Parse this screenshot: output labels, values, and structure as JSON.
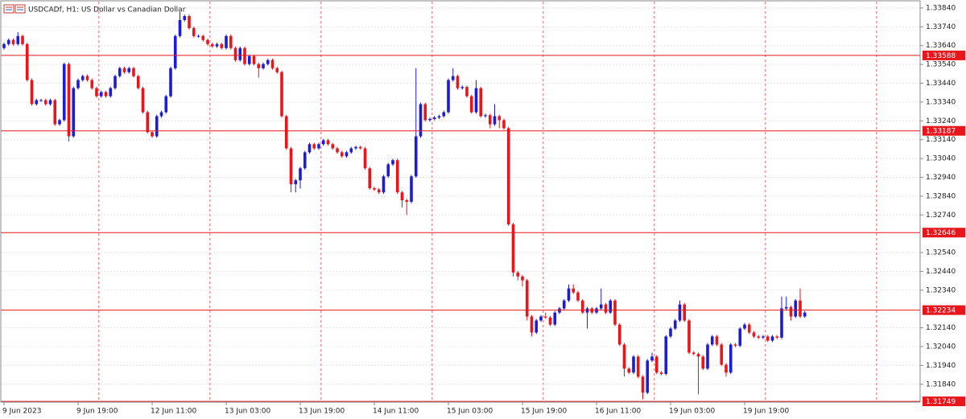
{
  "chart_data": {
    "type": "candlestick",
    "title": "USDCADf, H1:  US Dollar vs Canadian Dollar",
    "up_color": "#1c1cd6",
    "down_color": "#e8151b",
    "level_color": "#e8151b",
    "grid": true,
    "ylim": [
      1.31745,
      1.33874
    ],
    "yticks": [
      {
        "value": 1.3384,
        "label": "1.33840"
      },
      {
        "value": 1.3374,
        "label": "1.33740"
      },
      {
        "value": 1.3364,
        "label": "1.33640"
      },
      {
        "value": 1.3354,
        "label": "1.33540"
      },
      {
        "value": 1.3344,
        "label": "1.33440"
      },
      {
        "value": 1.3334,
        "label": "1.33340"
      },
      {
        "value": 1.3324,
        "label": "1.33240"
      },
      {
        "value": 1.3314,
        "label": "1.33140"
      },
      {
        "value": 1.3304,
        "label": "1.33040"
      },
      {
        "value": 1.3294,
        "label": "1.32940"
      },
      {
        "value": 1.3284,
        "label": "1.32840"
      },
      {
        "value": 1.3274,
        "label": "1.32740"
      },
      {
        "value": 1.3254,
        "label": "1.32540"
      },
      {
        "value": 1.3244,
        "label": "1.32440"
      },
      {
        "value": 1.3234,
        "label": "1.32340"
      },
      {
        "value": 1.3214,
        "label": "1.32140"
      },
      {
        "value": 1.3204,
        "label": "1.32040"
      },
      {
        "value": 1.3194,
        "label": "1.31940"
      },
      {
        "value": 1.3184,
        "label": "1.31840"
      }
    ],
    "levels": [
      1.33588,
      1.33187,
      1.32646,
      1.32234,
      1.31749
    ],
    "categories": [
      "9 Jun 2023",
      null,
      null,
      null,
      null,
      null,
      null,
      null,
      null,
      null,
      null,
      null,
      null,
      null,
      null,
      null,
      "9 Jun 19:00",
      null,
      null,
      null,
      null,
      null,
      null,
      null,
      null,
      null,
      null,
      null,
      null,
      null,
      null,
      null,
      "12 Jun 11:00",
      null,
      null,
      null,
      null,
      null,
      null,
      null,
      null,
      null,
      null,
      null,
      null,
      null,
      null,
      null,
      "13 Jun 03:00",
      null,
      null,
      null,
      null,
      null,
      null,
      null,
      null,
      null,
      null,
      null,
      null,
      null,
      null,
      null,
      "13 Jun 19:00",
      null,
      null,
      null,
      null,
      null,
      null,
      null,
      null,
      null,
      null,
      null,
      null,
      null,
      null,
      null,
      "14 Jun 11:00",
      null,
      null,
      null,
      null,
      null,
      null,
      null,
      null,
      null,
      null,
      null,
      null,
      null,
      null,
      null,
      "15 Jun 03:00",
      null,
      null,
      null,
      null,
      null,
      null,
      null,
      null,
      null,
      null,
      null,
      null,
      null,
      null,
      null,
      "15 Jun 19:00",
      null,
      null,
      null,
      null,
      null,
      null,
      null,
      null,
      null,
      null,
      null,
      null,
      null,
      null,
      null,
      "16 Jun 11:00",
      null,
      null,
      null,
      null,
      null,
      null,
      null,
      null,
      null,
      null,
      null,
      null,
      null,
      null,
      null,
      "19 Jun 03:00",
      null,
      null,
      null,
      null,
      null,
      null,
      null,
      null,
      null,
      null,
      null,
      null,
      null,
      null,
      null,
      "19 Jun 19:00",
      null,
      null,
      null,
      null,
      null,
      null,
      null,
      null,
      null,
      null,
      null,
      null,
      null
    ],
    "open": [
      1.33627,
      1.33648,
      1.3367,
      1.33648,
      1.33691,
      1.33648,
      1.33457,
      1.33329,
      1.3335,
      1.3335,
      1.33329,
      1.3335,
      1.33222,
      1.33244,
      1.33542,
      1.33158,
      1.33414,
      1.33457,
      1.33478,
      1.33457,
      1.33414,
      1.33371,
      1.33393,
      1.33371,
      1.33414,
      1.33478,
      1.3352,
      1.33499,
      1.3352,
      1.33478,
      1.33414,
      1.33286,
      1.3318,
      1.33158,
      1.33265,
      1.33286,
      1.33371,
      1.3352,
      1.33691,
      1.33776,
      1.33797,
      1.33733,
      1.33691,
      1.33691,
      1.3367,
      1.33648,
      1.33636,
      1.33648,
      1.33627,
      1.33691,
      1.33627,
      1.33563,
      1.33627,
      1.33542,
      1.33584,
      1.33542,
      1.3352,
      1.33542,
      1.33563,
      1.3352,
      1.33499,
      1.33265,
      1.33094,
      1.32903,
      1.32924,
      1.32988,
      1.33073,
      1.33116,
      1.33094,
      1.33116,
      1.33137,
      1.33116,
      1.33094,
      1.33073,
      1.33052,
      1.33073,
      1.33094,
      1.33101,
      1.33094,
      1.32988,
      1.32882,
      1.32875,
      1.3286,
      1.32945,
      1.33009,
      1.33031,
      1.3286,
      1.32818,
      1.3281,
      1.32945,
      1.33158,
      1.33329,
      1.33244,
      1.3325,
      1.33258,
      1.33265,
      1.33286,
      1.33457,
      1.33478,
      1.33414,
      1.3342,
      1.33371,
      1.33286,
      1.33414,
      1.33265,
      1.3327,
      1.33222,
      1.33265,
      1.33244,
      1.33201,
      1.3269,
      1.32434,
      1.32413,
      1.32392,
      1.322,
      1.32115,
      1.32179,
      1.322,
      1.32195,
      1.32157,
      1.32221,
      1.32243,
      1.32285,
      1.32349,
      1.32328,
      1.32285,
      1.32221,
      1.32243,
      1.32221,
      1.32243,
      1.32264,
      1.32221,
      1.32285,
      1.32157,
      1.32051,
      1.31923,
      1.31902,
      1.31987,
      1.3188,
      1.31795,
      1.31966,
      1.31987,
      1.31902,
      1.31895,
      1.32094,
      1.32136,
      1.32179,
      1.32264,
      1.32179,
      1.32008,
      1.32001,
      1.31987,
      1.31923,
      1.32051,
      1.32094,
      1.32051,
      1.31944,
      1.31902,
      1.32051,
      1.32045,
      1.32136,
      1.32157,
      1.32115,
      1.32094,
      1.32088,
      1.32094,
      1.32072,
      1.32094,
      1.32088,
      1.32243,
      1.3225,
      1.322,
      1.32285,
      1.322
    ],
    "high": [
      1.33656,
      1.33678,
      1.33678,
      1.33712,
      1.33699,
      1.33656,
      1.33465,
      1.33358,
      1.33358,
      1.33358,
      1.33358,
      1.33358,
      1.33252,
      1.3355,
      1.3355,
      1.33422,
      1.33465,
      1.33486,
      1.33486,
      1.33465,
      1.33422,
      1.33401,
      1.33401,
      1.33422,
      1.33486,
      1.33528,
      1.33528,
      1.33528,
      1.33528,
      1.33486,
      1.33422,
      1.33294,
      1.33188,
      1.33273,
      1.33294,
      1.33379,
      1.33528,
      1.33699,
      1.33819,
      1.33805,
      1.33805,
      1.33741,
      1.33699,
      1.33699,
      1.33678,
      1.33656,
      1.33656,
      1.33656,
      1.33699,
      1.33699,
      1.33635,
      1.33635,
      1.33635,
      1.33592,
      1.33592,
      1.3355,
      1.3355,
      1.33571,
      1.33571,
      1.33528,
      1.33507,
      1.33273,
      1.33102,
      1.32932,
      1.32996,
      1.33081,
      1.33124,
      1.33124,
      1.33124,
      1.33145,
      1.33145,
      1.33124,
      1.33102,
      1.33081,
      1.33081,
      1.33102,
      1.33109,
      1.33109,
      1.33102,
      1.32996,
      1.3289,
      1.32883,
      1.32953,
      1.33017,
      1.33039,
      1.33039,
      1.32868,
      1.32826,
      1.32953,
      1.3352,
      1.33337,
      1.33337,
      1.33258,
      1.33266,
      1.33273,
      1.33294,
      1.33465,
      1.3352,
      1.33486,
      1.33428,
      1.33428,
      1.33379,
      1.33457,
      1.33422,
      1.33278,
      1.33278,
      1.33329,
      1.33273,
      1.33252,
      1.33209,
      1.32698,
      1.32442,
      1.32421,
      1.324,
      1.32208,
      1.32187,
      1.32208,
      1.32221,
      1.32203,
      1.32229,
      1.32251,
      1.32293,
      1.3237,
      1.3237,
      1.32336,
      1.32293,
      1.32251,
      1.32251,
      1.32251,
      1.32349,
      1.32272,
      1.32293,
      1.32293,
      1.32165,
      1.32059,
      1.31931,
      1.31995,
      1.31995,
      1.31888,
      1.31974,
      1.32008,
      1.31995,
      1.3191,
      1.32102,
      1.32144,
      1.32187,
      1.32285,
      1.32272,
      1.32187,
      1.32016,
      1.32009,
      1.31995,
      1.32059,
      1.32102,
      1.32102,
      1.32059,
      1.31952,
      1.32059,
      1.32059,
      1.32144,
      1.32165,
      1.32165,
      1.32123,
      1.32102,
      1.32102,
      1.32102,
      1.32102,
      1.32102,
      1.32306,
      1.32306,
      1.32258,
      1.32293,
      1.32349,
      1.32229
    ],
    "low": [
      1.33619,
      1.3364,
      1.3364,
      1.3364,
      1.3364,
      1.33449,
      1.33321,
      1.33321,
      1.33342,
      1.33321,
      1.33321,
      1.33214,
      1.33214,
      1.33236,
      1.3313,
      1.3315,
      1.33406,
      1.33449,
      1.33449,
      1.33406,
      1.33363,
      1.33363,
      1.33363,
      1.33363,
      1.33406,
      1.3347,
      1.33491,
      1.33491,
      1.3347,
      1.33406,
      1.33278,
      1.33172,
      1.3315,
      1.3315,
      1.33257,
      1.33278,
      1.33363,
      1.33512,
      1.33683,
      1.33768,
      1.33725,
      1.33683,
      1.33683,
      1.33662,
      1.3364,
      1.33628,
      1.33628,
      1.33619,
      1.33619,
      1.33619,
      1.33555,
      1.33555,
      1.33534,
      1.33534,
      1.33534,
      1.3347,
      1.33512,
      1.33534,
      1.33512,
      1.33491,
      1.33257,
      1.33086,
      1.3286,
      1.3286,
      1.3288,
      1.3298,
      1.33065,
      1.33086,
      1.33086,
      1.33108,
      1.33108,
      1.33086,
      1.33065,
      1.33044,
      1.33044,
      1.33065,
      1.33086,
      1.33086,
      1.3298,
      1.32874,
      1.32867,
      1.32852,
      1.32852,
      1.32937,
      1.33001,
      1.32852,
      1.3278,
      1.3274,
      1.32802,
      1.32937,
      1.3315,
      1.33236,
      1.33236,
      1.33242,
      1.3325,
      1.33257,
      1.33278,
      1.33449,
      1.33406,
      1.33406,
      1.33363,
      1.33278,
      1.33278,
      1.33257,
      1.33257,
      1.33201,
      1.33214,
      1.33201,
      1.33193,
      1.32682,
      1.32413,
      1.32392,
      1.3236,
      1.32179,
      1.32094,
      1.32107,
      1.32171,
      1.32187,
      1.32149,
      1.32149,
      1.32213,
      1.32235,
      1.32277,
      1.3232,
      1.32277,
      1.32213,
      1.32136,
      1.32213,
      1.32213,
      1.32235,
      1.32213,
      1.32213,
      1.32149,
      1.32043,
      1.3188,
      1.31894,
      1.31894,
      1.31872,
      1.3176,
      1.31787,
      1.31958,
      1.31894,
      1.31887,
      1.31887,
      1.32086,
      1.32128,
      1.32171,
      1.32171,
      1.32,
      1.31993,
      1.31786,
      1.31915,
      1.31915,
      1.32043,
      1.32043,
      1.31936,
      1.3188,
      1.31894,
      1.32037,
      1.32037,
      1.32128,
      1.32107,
      1.32086,
      1.3208,
      1.3208,
      1.32064,
      1.32064,
      1.3208,
      1.3208,
      1.32235,
      1.32179,
      1.32192,
      1.32192,
      1.32192
    ],
    "close": [
      1.33648,
      1.3367,
      1.33648,
      1.33691,
      1.33648,
      1.33457,
      1.33329,
      1.3335,
      1.3335,
      1.33329,
      1.3335,
      1.33222,
      1.33244,
      1.33542,
      1.33158,
      1.33414,
      1.33457,
      1.33478,
      1.33457,
      1.33414,
      1.33371,
      1.33393,
      1.33371,
      1.33414,
      1.33478,
      1.3352,
      1.33499,
      1.3352,
      1.33478,
      1.33414,
      1.33286,
      1.3318,
      1.33158,
      1.33265,
      1.33286,
      1.33371,
      1.3352,
      1.33691,
      1.33776,
      1.33797,
      1.33733,
      1.33691,
      1.33691,
      1.3367,
      1.33648,
      1.33636,
      1.33648,
      1.33627,
      1.33691,
      1.33627,
      1.33563,
      1.33627,
      1.33542,
      1.33584,
      1.33542,
      1.3352,
      1.33542,
      1.33563,
      1.3352,
      1.33499,
      1.33265,
      1.33094,
      1.32903,
      1.32924,
      1.32988,
      1.33073,
      1.33116,
      1.33094,
      1.33116,
      1.33137,
      1.33116,
      1.33094,
      1.33073,
      1.33052,
      1.33073,
      1.33094,
      1.33101,
      1.33094,
      1.32988,
      1.32882,
      1.32875,
      1.3286,
      1.32945,
      1.33009,
      1.33031,
      1.3286,
      1.32818,
      1.3281,
      1.32945,
      1.33158,
      1.33329,
      1.33244,
      1.3325,
      1.33258,
      1.33265,
      1.33286,
      1.33457,
      1.33478,
      1.33414,
      1.3342,
      1.33371,
      1.33286,
      1.33414,
      1.33265,
      1.3327,
      1.33222,
      1.33265,
      1.33244,
      1.33201,
      1.3269,
      1.32434,
      1.32413,
      1.32392,
      1.322,
      1.32115,
      1.32179,
      1.322,
      1.32195,
      1.32157,
      1.32221,
      1.32243,
      1.32285,
      1.32349,
      1.32328,
      1.32285,
      1.32221,
      1.32243,
      1.32221,
      1.32243,
      1.32264,
      1.32221,
      1.32285,
      1.32157,
      1.32051,
      1.31923,
      1.31902,
      1.31987,
      1.3188,
      1.31795,
      1.31966,
      1.31987,
      1.31902,
      1.31895,
      1.32094,
      1.32136,
      1.32179,
      1.32264,
      1.32179,
      1.32008,
      1.32001,
      1.31987,
      1.31923,
      1.32051,
      1.32094,
      1.32051,
      1.31944,
      1.31902,
      1.32051,
      1.32045,
      1.32136,
      1.32157,
      1.32115,
      1.32094,
      1.32088,
      1.32094,
      1.32072,
      1.32094,
      1.32088,
      1.32243,
      1.3225,
      1.322,
      1.32285,
      1.322,
      1.32221
    ]
  }
}
